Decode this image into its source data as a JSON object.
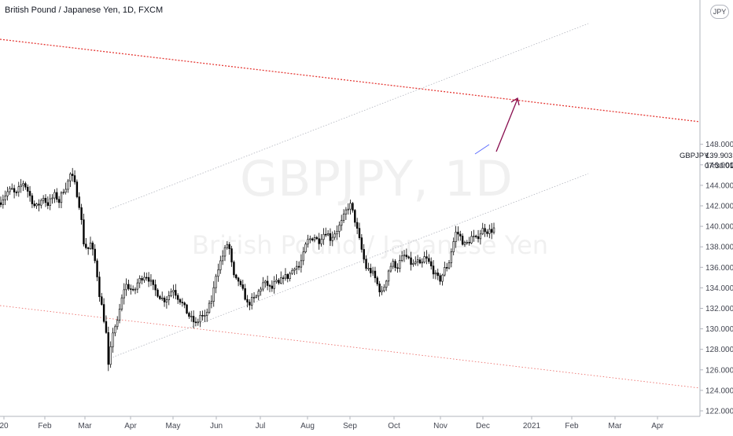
{
  "header": {
    "title": "British Pound / Japanese Yen, 1D, FXCM",
    "currency": "JPY"
  },
  "watermark": {
    "symbol": "GBPJPY, 1D",
    "name": "British Pound / Japanese Yen"
  },
  "price_label": {
    "symbol": "GBPJPY",
    "price": "139.903",
    "countdown": "07:30:01"
  },
  "chart_data": {
    "type": "candlestick",
    "title": "British Pound / Japanese Yen, 1D, FXCM",
    "xlabel": "",
    "ylabel": "",
    "y_ticks": [
      "122.000",
      "124.000",
      "126.000",
      "128.000",
      "130.000",
      "132.000",
      "134.000",
      "136.000",
      "138.000",
      "140.000",
      "142.000",
      "144.000",
      "146.000",
      "148.000"
    ],
    "ylim": [
      121.5,
      150.5
    ],
    "x_ticks": [
      "20",
      "Feb",
      "Mar",
      "Apr",
      "May",
      "Jun",
      "Jul",
      "Aug",
      "Sep",
      "Oct",
      "Nov",
      "Dec",
      "2021",
      "Feb",
      "Mar",
      "Apr"
    ],
    "colors": {
      "candle": "#000000",
      "resistance": "#e53935",
      "channel": "#b2b5be",
      "arrow": "#880e4f",
      "trend": "#5b6cff"
    },
    "price_path": [
      [
        0,
        142.3
      ],
      [
        5,
        142.9
      ],
      [
        10,
        143.4
      ],
      [
        15,
        143.6
      ],
      [
        20,
        143.0
      ],
      [
        25,
        143.8
      ],
      [
        30,
        144.3
      ],
      [
        35,
        143.5
      ],
      [
        40,
        142.6
      ],
      [
        45,
        141.8
      ],
      [
        50,
        142.2
      ],
      [
        55,
        142.9
      ],
      [
        60,
        142.1
      ],
      [
        65,
        142.6
      ],
      [
        70,
        143.1
      ],
      [
        75,
        142.4
      ],
      [
        80,
        143.5
      ],
      [
        85,
        144.0
      ],
      [
        90,
        145.2
      ],
      [
        95,
        144.1
      ],
      [
        100,
        142.5
      ],
      [
        103,
        141.0
      ],
      [
        106,
        138.5
      ],
      [
        109,
        138.0
      ],
      [
        112,
        137.8
      ],
      [
        115,
        138.3
      ],
      [
        118,
        137.5
      ],
      [
        121,
        136.5
      ],
      [
        124,
        135.0
      ],
      [
        127,
        133.0
      ],
      [
        130,
        132.0
      ],
      [
        133,
        130.5
      ],
      [
        136,
        129.0
      ],
      [
        138,
        126.0
      ],
      [
        140,
        127.5
      ],
      [
        142,
        129.0
      ],
      [
        145,
        130.5
      ],
      [
        148,
        130.0
      ],
      [
        151,
        131.5
      ],
      [
        154,
        132.5
      ],
      [
        157,
        133.8
      ],
      [
        160,
        134.3
      ],
      [
        165,
        134.0
      ],
      [
        170,
        133.5
      ],
      [
        175,
        134.5
      ],
      [
        180,
        135.0
      ],
      [
        185,
        135.3
      ],
      [
        190,
        134.8
      ],
      [
        195,
        134.0
      ],
      [
        200,
        133.5
      ],
      [
        205,
        133.0
      ],
      [
        210,
        132.8
      ],
      [
        215,
        133.3
      ],
      [
        220,
        134.0
      ],
      [
        225,
        133.2
      ],
      [
        230,
        132.7
      ],
      [
        235,
        132.0
      ],
      [
        240,
        131.3
      ],
      [
        245,
        130.8
      ],
      [
        250,
        130.4
      ],
      [
        255,
        131.4
      ],
      [
        260,
        131.0
      ],
      [
        265,
        132.0
      ],
      [
        270,
        133.0
      ],
      [
        275,
        135.5
      ],
      [
        280,
        136.5
      ],
      [
        285,
        137.5
      ],
      [
        290,
        138.5
      ],
      [
        293,
        137.2
      ],
      [
        296,
        135.5
      ],
      [
        299,
        134.5
      ],
      [
        302,
        135.0
      ],
      [
        305,
        134.2
      ],
      [
        310,
        133.5
      ],
      [
        315,
        132.3
      ],
      [
        320,
        132.8
      ],
      [
        325,
        133.0
      ],
      [
        330,
        133.8
      ],
      [
        335,
        134.5
      ],
      [
        340,
        134.3
      ],
      [
        345,
        133.8
      ],
      [
        350,
        134.6
      ],
      [
        355,
        134.3
      ],
      [
        360,
        135.2
      ],
      [
        365,
        135.0
      ],
      [
        370,
        135.5
      ],
      [
        375,
        136.2
      ],
      [
        380,
        136.0
      ],
      [
        385,
        137.0
      ],
      [
        390,
        138.5
      ],
      [
        395,
        138.8
      ],
      [
        400,
        139.0
      ],
      [
        405,
        138.5
      ],
      [
        410,
        139.2
      ],
      [
        415,
        139.5
      ],
      [
        420,
        138.8
      ],
      [
        425,
        139.3
      ],
      [
        430,
        139.8
      ],
      [
        435,
        140.5
      ],
      [
        440,
        141.5
      ],
      [
        445,
        142.2
      ],
      [
        450,
        141.0
      ],
      [
        453,
        140.0
      ],
      [
        456,
        139.0
      ],
      [
        459,
        138.0
      ],
      [
        462,
        137.0
      ],
      [
        465,
        136.0
      ],
      [
        470,
        135.7
      ],
      [
        475,
        135.3
      ],
      [
        480,
        134.3
      ],
      [
        485,
        133.4
      ],
      [
        490,
        134.5
      ],
      [
        495,
        136.0
      ],
      [
        500,
        136.4
      ],
      [
        505,
        136.0
      ],
      [
        510,
        136.8
      ],
      [
        515,
        137.2
      ],
      [
        520,
        136.6
      ],
      [
        525,
        136.2
      ],
      [
        530,
        136.7
      ],
      [
        535,
        136.0
      ],
      [
        540,
        137.0
      ],
      [
        545,
        136.5
      ],
      [
        550,
        135.8
      ],
      [
        555,
        135.0
      ],
      [
        560,
        134.8
      ],
      [
        565,
        135.8
      ],
      [
        570,
        136.2
      ],
      [
        575,
        138.0
      ],
      [
        580,
        139.5
      ],
      [
        585,
        139.0
      ],
      [
        590,
        138.2
      ],
      [
        595,
        138.4
      ],
      [
        600,
        139.0
      ],
      [
        605,
        138.7
      ],
      [
        610,
        139.3
      ],
      [
        615,
        139.8
      ],
      [
        620,
        139.5
      ],
      [
        625,
        139.6
      ],
      [
        630,
        139.9
      ]
    ]
  }
}
